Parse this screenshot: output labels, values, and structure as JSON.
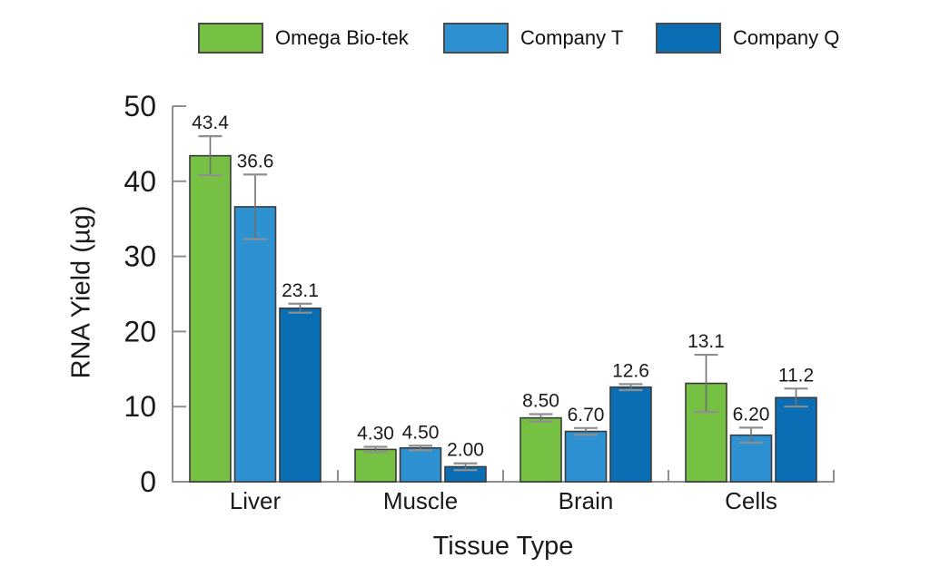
{
  "page": {
    "background": "#ffffff"
  },
  "chart_data": {
    "type": "bar",
    "title": "",
    "xlabel": "Tissue Type",
    "ylabel": "RNA Yield (µg)",
    "categories": [
      "Liver",
      "Muscle",
      "Brain",
      "Cells"
    ],
    "series": [
      {
        "name": "Omega Bio-tek",
        "color": "#76c043",
        "values": [
          43.4,
          4.3,
          8.5,
          13.1
        ],
        "errors": [
          2.6,
          0.35,
          0.5,
          3.8
        ],
        "value_labels": [
          "43.4",
          "4.30",
          "8.50",
          "13.1"
        ]
      },
      {
        "name": "Company T",
        "color": "#2e91d2",
        "values": [
          36.6,
          4.5,
          6.7,
          6.2
        ],
        "errors": [
          4.3,
          0.3,
          0.45,
          1.0
        ],
        "value_labels": [
          "36.6",
          "4.50",
          "6.70",
          "6.20"
        ]
      },
      {
        "name": "Company Q",
        "color": "#0a6eb4",
        "values": [
          23.1,
          2.0,
          12.6,
          11.2
        ],
        "errors": [
          0.6,
          0.45,
          0.4,
          1.2
        ],
        "value_labels": [
          "23.1",
          "2.00",
          "12.6",
          "11.2"
        ]
      }
    ],
    "ylim": [
      0,
      50
    ],
    "yticks": [
      0,
      10,
      20,
      30,
      40,
      50
    ],
    "grid": false,
    "legend_position": "top",
    "style": {
      "axis_color": "#8f8f8f",
      "bar_border": "#3b3b3b",
      "error_line_color": "#6f6f6f",
      "error_cap_color": "#8f8f8f",
      "text_color": "#1a1a1a"
    }
  }
}
